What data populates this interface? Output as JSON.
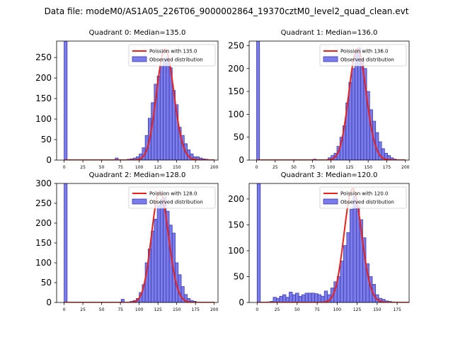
{
  "figure_title": "Data file: modeM0/AS1A05_226T06_9000002864_19370cztM0_level2_quad_clean.evt",
  "colors": {
    "bar_fill": "#7b7bea",
    "bar_edge": "#3b3bb3",
    "curve": "#e8211a",
    "axes": "#000000"
  },
  "chart_data": [
    {
      "type": "bar",
      "title": "Quadrant 0: Median=135.0",
      "legend": {
        "curve": "Poission with 135.0",
        "bars": "Observed distribution",
        "placement": "top-right"
      },
      "xlim": [
        -10,
        205
      ],
      "ylim": [
        0,
        290
      ],
      "xticks": [
        0,
        25,
        50,
        75,
        100,
        125,
        150,
        175,
        200
      ],
      "yticks": [
        0,
        50,
        100,
        150,
        200,
        250
      ],
      "bin_width": 4,
      "bins": [
        [
          0,
          290
        ],
        [
          68,
          5
        ],
        [
          84,
          2
        ],
        [
          88,
          3
        ],
        [
          92,
          5
        ],
        [
          96,
          8
        ],
        [
          100,
          15
        ],
        [
          104,
          30
        ],
        [
          108,
          60
        ],
        [
          112,
          102
        ],
        [
          116,
          140
        ],
        [
          120,
          185
        ],
        [
          124,
          205
        ],
        [
          128,
          230
        ],
        [
          132,
          245
        ],
        [
          136,
          250
        ],
        [
          140,
          225
        ],
        [
          144,
          170
        ],
        [
          148,
          135
        ],
        [
          152,
          80
        ],
        [
          156,
          60
        ],
        [
          160,
          40
        ],
        [
          164,
          25
        ],
        [
          168,
          15
        ],
        [
          172,
          8
        ],
        [
          176,
          8
        ],
        [
          180,
          5
        ],
        [
          184,
          3
        ],
        [
          188,
          2
        ],
        [
          192,
          1
        ],
        [
          196,
          1
        ]
      ],
      "poisson_mean": 135,
      "curve_scale": 270
    },
    {
      "type": "bar",
      "title": "Quadrant 1: Median=136.0",
      "legend": {
        "curve": "Poission with 136.0",
        "bars": "Observed distribution",
        "placement": "top-right"
      },
      "xlim": [
        -10,
        205
      ],
      "ylim": [
        0,
        260
      ],
      "xticks": [
        0,
        25,
        50,
        75,
        100,
        125,
        150,
        175,
        200
      ],
      "yticks": [
        0,
        50,
        100,
        150,
        200,
        250
      ],
      "bin_width": 4,
      "bins": [
        [
          0,
          260
        ],
        [
          76,
          2
        ],
        [
          96,
          5
        ],
        [
          100,
          10
        ],
        [
          104,
          15
        ],
        [
          108,
          30
        ],
        [
          112,
          50
        ],
        [
          116,
          75
        ],
        [
          120,
          125
        ],
        [
          124,
          170
        ],
        [
          128,
          200
        ],
        [
          132,
          235
        ],
        [
          136,
          245
        ],
        [
          140,
          220
        ],
        [
          144,
          200
        ],
        [
          148,
          150
        ],
        [
          152,
          110
        ],
        [
          156,
          85
        ],
        [
          160,
          60
        ],
        [
          164,
          40
        ],
        [
          168,
          25
        ],
        [
          172,
          15
        ],
        [
          176,
          10
        ],
        [
          180,
          5
        ],
        [
          184,
          2
        ],
        [
          188,
          1
        ]
      ],
      "poisson_mean": 136,
      "curve_scale": 243
    },
    {
      "type": "bar",
      "title": "Quadrant 2: Median=128.0",
      "legend": {
        "curve": "Poission with 128.0",
        "bars": "Observed distribution",
        "placement": "top-right"
      },
      "xlim": [
        -10,
        205
      ],
      "ylim": [
        0,
        300
      ],
      "xticks": [
        0,
        25,
        50,
        75,
        100,
        125,
        150,
        175,
        200
      ],
      "yticks": [
        0,
        50,
        100,
        150,
        200,
        250,
        300
      ],
      "bin_width": 4,
      "bins": [
        [
          0,
          300
        ],
        [
          76,
          8
        ],
        [
          88,
          3
        ],
        [
          92,
          5
        ],
        [
          96,
          10
        ],
        [
          100,
          25
        ],
        [
          104,
          45
        ],
        [
          108,
          100
        ],
        [
          112,
          135
        ],
        [
          116,
          180
        ],
        [
          120,
          210
        ],
        [
          124,
          245
        ],
        [
          128,
          260
        ],
        [
          132,
          265
        ],
        [
          136,
          230
        ],
        [
          140,
          195
        ],
        [
          144,
          175
        ],
        [
          148,
          100
        ],
        [
          152,
          70
        ],
        [
          156,
          40
        ],
        [
          160,
          20
        ],
        [
          164,
          10
        ],
        [
          168,
          5
        ],
        [
          172,
          3
        ],
        [
          176,
          1
        ]
      ],
      "poisson_mean": 128,
      "curve_scale": 280
    },
    {
      "type": "bar",
      "title": "Quadrant 3: Median=120.0",
      "legend": {
        "curve": "Poission with 120.0",
        "bars": "Observed distribution",
        "placement": "top-right"
      },
      "xlim": [
        -10,
        190
      ],
      "ylim": [
        0,
        230
      ],
      "xticks": [
        0,
        25,
        50,
        75,
        100,
        125,
        150,
        175
      ],
      "yticks": [
        0,
        50,
        100,
        150,
        200
      ],
      "bin_width": 4,
      "bins": [
        [
          0,
          230
        ],
        [
          12,
          1
        ],
        [
          16,
          2
        ],
        [
          20,
          10
        ],
        [
          24,
          8
        ],
        [
          28,
          12
        ],
        [
          32,
          15
        ],
        [
          36,
          10
        ],
        [
          40,
          20
        ],
        [
          44,
          15
        ],
        [
          48,
          18
        ],
        [
          52,
          12
        ],
        [
          56,
          15
        ],
        [
          60,
          18
        ],
        [
          64,
          18
        ],
        [
          68,
          18
        ],
        [
          72,
          17
        ],
        [
          76,
          15
        ],
        [
          80,
          12
        ],
        [
          84,
          22
        ],
        [
          88,
          15
        ],
        [
          92,
          28
        ],
        [
          96,
          40
        ],
        [
          100,
          50
        ],
        [
          104,
          80
        ],
        [
          108,
          110
        ],
        [
          112,
          135
        ],
        [
          116,
          180
        ],
        [
          120,
          205
        ],
        [
          124,
          185
        ],
        [
          128,
          160
        ],
        [
          132,
          125
        ],
        [
          136,
          75
        ],
        [
          140,
          50
        ],
        [
          144,
          35
        ],
        [
          148,
          15
        ],
        [
          152,
          8
        ],
        [
          156,
          6
        ],
        [
          160,
          3
        ],
        [
          164,
          2
        ],
        [
          168,
          1
        ]
      ],
      "poisson_mean": 120,
      "curve_scale": 220
    }
  ]
}
